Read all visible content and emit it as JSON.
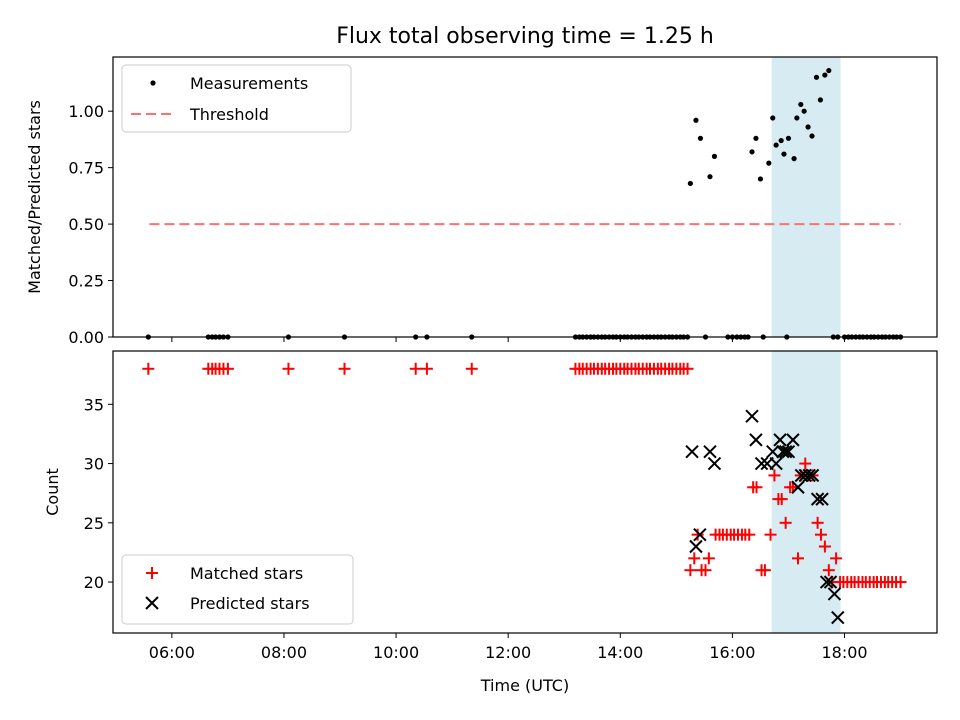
{
  "figure": {
    "title": "Flux total observing time = 1.25 h"
  },
  "colors": {
    "measurements": "#000000",
    "threshold": "#ff7070",
    "matched": "#ff0000",
    "predicted": "#000000",
    "highlight": "#add8e6"
  },
  "chart_data": [
    {
      "type": "scatter",
      "panel": "top",
      "title": "Flux total observing time = 1.25 h",
      "xlabel": "",
      "ylabel": "Matched/Predicted stars",
      "x_unit": "time of day (UTC), decimal hours",
      "xlim": [
        4.95,
        19.65
      ],
      "ylim": [
        0.0,
        1.24
      ],
      "xticks": [
        "06:00",
        "08:00",
        "10:00",
        "12:00",
        "14:00",
        "16:00",
        "18:00"
      ],
      "yticks": [
        "0.00",
        "0.25",
        "0.50",
        "0.75",
        "1.00"
      ],
      "highlight_span": [
        16.7,
        17.93
      ],
      "legend": {
        "position": "upper-left",
        "entries": [
          "Measurements",
          "Threshold"
        ]
      },
      "threshold": {
        "name": "Threshold",
        "y": 0.5,
        "x": [
          5.6,
          19.0
        ]
      },
      "series": [
        {
          "name": "Measurements",
          "x": [
            5.58,
            6.65,
            6.72,
            6.78,
            6.85,
            6.92,
            7.0,
            8.08,
            9.08,
            10.35,
            10.55,
            11.35,
            13.2,
            13.27,
            13.33,
            13.4,
            13.47,
            13.53,
            13.6,
            13.67,
            13.73,
            13.8,
            13.87,
            13.93,
            14.0,
            14.07,
            14.13,
            14.2,
            14.27,
            14.33,
            14.4,
            14.47,
            14.53,
            14.6,
            14.67,
            14.73,
            14.8,
            14.87,
            14.93,
            15.0,
            15.07,
            15.13,
            15.2,
            15.25,
            15.35,
            15.43,
            15.6,
            15.68,
            15.52,
            15.92,
            16.0,
            16.08,
            16.15,
            16.22,
            16.28,
            16.35,
            16.42,
            16.5,
            16.55,
            16.65,
            16.72,
            16.78,
            16.87,
            16.92,
            16.97,
            17.0,
            17.1,
            17.15,
            17.22,
            17.28,
            17.35,
            17.42,
            17.5,
            17.57,
            17.65,
            17.72,
            17.8,
            17.88,
            18.0,
            18.07,
            18.13,
            18.2,
            18.27,
            18.33,
            18.4,
            18.47,
            18.53,
            18.6,
            18.67,
            18.73,
            18.8,
            18.87,
            18.93,
            19.0
          ],
          "y": [
            0,
            0,
            0,
            0,
            0,
            0,
            0,
            0,
            0,
            0,
            0,
            0,
            0,
            0,
            0,
            0,
            0,
            0,
            0,
            0,
            0,
            0,
            0,
            0,
            0,
            0,
            0,
            0,
            0,
            0,
            0,
            0,
            0,
            0,
            0,
            0,
            0,
            0,
            0,
            0,
            0,
            0,
            0,
            0.68,
            0.96,
            0.88,
            0.71,
            0.8,
            0,
            0,
            0,
            0,
            0,
            0,
            0,
            0.82,
            0.88,
            0.7,
            0,
            0.77,
            0.97,
            0.85,
            0.87,
            0.81,
            0,
            0.88,
            0.79,
            0.97,
            1.03,
            1.0,
            0.93,
            0.89,
            1.15,
            1.05,
            1.16,
            1.18,
            0,
            0,
            0,
            0,
            0,
            0,
            0,
            0,
            0,
            0,
            0,
            0,
            0,
            0,
            0,
            0,
            0,
            0
          ]
        }
      ]
    },
    {
      "type": "scatter",
      "panel": "bottom",
      "title": "",
      "xlabel": "Time (UTC)",
      "ylabel": "Count",
      "x_unit": "time of day (UTC), decimal hours",
      "xlim": [
        4.95,
        19.65
      ],
      "ylim": [
        15.7,
        39.5
      ],
      "xticks": [
        "06:00",
        "08:00",
        "10:00",
        "12:00",
        "14:00",
        "16:00",
        "18:00"
      ],
      "yticks": [
        "20",
        "25",
        "30",
        "35"
      ],
      "highlight_span": [
        16.7,
        17.93
      ],
      "legend": {
        "position": "lower-left",
        "entries": [
          "Matched stars",
          "Predicted stars"
        ]
      },
      "series": [
        {
          "name": "Matched stars",
          "marker": "+",
          "x": [
            5.58,
            6.65,
            6.72,
            6.78,
            6.85,
            6.92,
            7.0,
            8.08,
            9.08,
            10.35,
            10.55,
            11.35,
            13.2,
            13.27,
            13.33,
            13.4,
            13.47,
            13.53,
            13.6,
            13.67,
            13.73,
            13.8,
            13.87,
            13.93,
            14.0,
            14.07,
            14.13,
            14.2,
            14.27,
            14.33,
            14.4,
            14.47,
            14.53,
            14.6,
            14.67,
            14.73,
            14.8,
            14.87,
            14.93,
            15.0,
            15.07,
            15.13,
            15.2,
            15.25,
            15.32,
            15.38,
            15.45,
            15.52,
            15.58,
            15.7,
            15.77,
            15.83,
            15.9,
            15.97,
            16.03,
            16.1,
            16.17,
            16.23,
            16.3,
            16.37,
            16.43,
            16.52,
            16.58,
            16.68,
            16.75,
            16.82,
            16.88,
            16.95,
            17.03,
            17.08,
            17.17,
            17.22,
            17.3,
            17.37,
            17.43,
            17.52,
            17.58,
            17.65,
            17.72,
            17.78,
            17.85,
            17.92,
            17.98,
            18.05,
            18.12,
            18.18,
            18.25,
            18.32,
            18.38,
            18.45,
            18.52,
            18.58,
            18.65,
            18.72,
            18.78,
            18.85,
            18.92,
            19.0
          ],
          "y": [
            38,
            38,
            38,
            38,
            38,
            38,
            38,
            38,
            38,
            38,
            38,
            38,
            38,
            38,
            38,
            38,
            38,
            38,
            38,
            38,
            38,
            38,
            38,
            38,
            38,
            38,
            38,
            38,
            38,
            38,
            38,
            38,
            38,
            38,
            38,
            38,
            38,
            38,
            38,
            38,
            38,
            38,
            38,
            21,
            22,
            24,
            21,
            21,
            22,
            24,
            24,
            24,
            24,
            24,
            24,
            24,
            24,
            24,
            24,
            28,
            28,
            21,
            21,
            24,
            29,
            27,
            27,
            25,
            28,
            28,
            22,
            29,
            30,
            29,
            29,
            25,
            24,
            23,
            21,
            20,
            22,
            20,
            20,
            20,
            20,
            20,
            20,
            20,
            20,
            20,
            20,
            20,
            20,
            20,
            20,
            20,
            20,
            20
          ]
        },
        {
          "name": "Predicted stars",
          "marker": "x",
          "x": [
            15.28,
            15.35,
            15.42,
            15.6,
            15.68,
            16.35,
            16.42,
            16.52,
            16.62,
            16.72,
            16.78,
            16.85,
            16.9,
            16.95,
            17.0,
            17.08,
            17.17,
            17.23,
            17.3,
            17.37,
            17.43,
            17.52,
            17.6,
            17.68,
            17.75,
            17.82,
            17.88
          ],
          "y": [
            31,
            23,
            24,
            31,
            30,
            34,
            32,
            30,
            30,
            31,
            30,
            32,
            31,
            31,
            31,
            32,
            28,
            29,
            29,
            29,
            29,
            27,
            27,
            20,
            20,
            19,
            17
          ]
        }
      ]
    }
  ]
}
